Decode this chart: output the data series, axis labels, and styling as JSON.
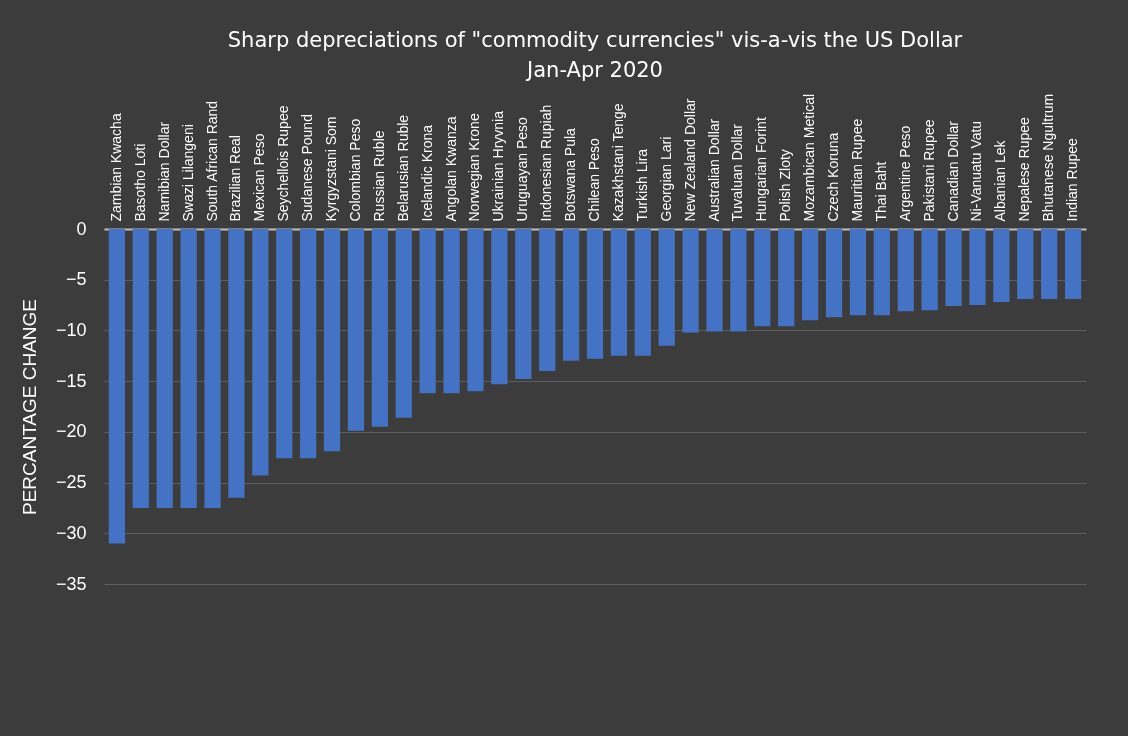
{
  "chart_data": {
    "type": "bar",
    "title": "Sharp depreciations of \"commodity currencies\" vis-a-vis the US Dollar Jan-Apr 2020",
    "ylabel": "PERCANTAGE CHANGE",
    "categories": [
      "Zambian Kwacha",
      "Basotho Loti",
      "Namibian Dollar",
      "Swazi Lilangeni",
      "South African Rand",
      "Brazilian Real",
      "Mexican Peso",
      "Seychellois Rupee",
      "Sudanese Pound",
      "Kyrgyzstani Som",
      "Colombian Peso",
      "Russian Ruble",
      "Belarusian Ruble",
      "Icelandic Krona",
      "Angolan Kwanza",
      "Norwegian Krone",
      "Ukrainian Hryvnia",
      "Uruguayan Peso",
      "Indonesian Rupiah",
      "Botswana Pula",
      "Chilean Peso",
      "Kazakhstani Tenge",
      "Turkish Lira",
      "Georgian Lari",
      "New Zealand Dollar",
      "Australian Dollar",
      "Tuvaluan Dollar",
      "Hungarian Forint",
      "Polish Zloty",
      "Mozambican Metical",
      "Czech Koruna",
      "Mauritian Rupee",
      "Thai Baht",
      "Argentine Peso",
      "Pakistani Rupee",
      "Canadian Dollar",
      "Ni-Vanuatu Vatu",
      "Albanian Lek",
      "Nepalese Rupee",
      "Bhutanese Ngultrum",
      "Indian Rupee"
    ],
    "values": [
      -31,
      -27.5,
      -27.5,
      -27.5,
      -27.5,
      -26.5,
      -24.3,
      -22.6,
      -22.6,
      -21.9,
      -19.9,
      -19.5,
      -18.6,
      -16.2,
      -16.2,
      -16,
      -15.3,
      -14.8,
      -14,
      -13,
      -12.8,
      -12.5,
      -12.5,
      -11.5,
      -10.2,
      -10.1,
      -10.1,
      -9.6,
      -9.6,
      -9,
      -8.7,
      -8.5,
      -8.5,
      -8.1,
      -8,
      -7.6,
      -7.5,
      -7.2,
      -6.9,
      -6.9,
      -6.9
    ],
    "color": "#4472c4",
    "ylim": [
      -35,
      0
    ],
    "yticks": [
      0,
      -5,
      -10,
      -15,
      -20,
      -25,
      -30,
      -35
    ],
    "grid": "y"
  }
}
